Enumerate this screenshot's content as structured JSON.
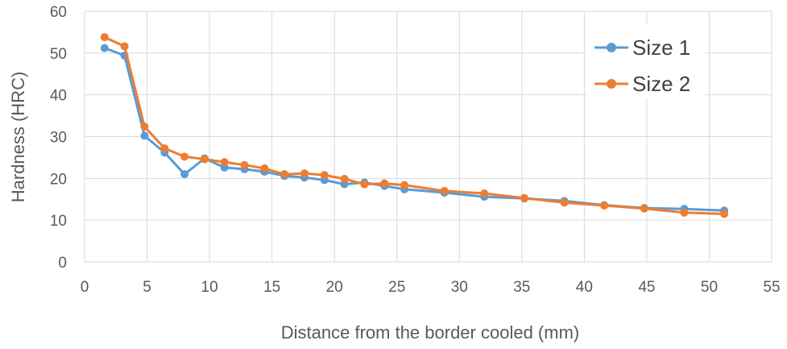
{
  "chart_data": {
    "type": "line",
    "title": "",
    "xlabel": "Distance from the border cooled (mm)",
    "ylabel": "Hardness (HRC)",
    "xlim": [
      0,
      55
    ],
    "ylim": [
      0,
      60
    ],
    "xticks": [
      0,
      5,
      10,
      15,
      20,
      25,
      30,
      35,
      40,
      45,
      50,
      55
    ],
    "yticks": [
      0,
      10,
      20,
      30,
      40,
      50,
      60
    ],
    "grid": true,
    "legend_position": "top-right",
    "series": [
      {
        "name": "Size 1",
        "color": "#5b9bd5",
        "x": [
          1.6,
          3.2,
          4.8,
          6.4,
          8.0,
          9.6,
          11.2,
          12.8,
          14.4,
          16.0,
          17.6,
          19.2,
          20.8,
          22.4,
          24.0,
          25.6,
          28.8,
          32.0,
          35.2,
          38.4,
          41.6,
          44.8,
          48.0,
          51.2
        ],
        "y": [
          51.2,
          49.4,
          30.2,
          26.2,
          21.0,
          24.8,
          22.6,
          22.2,
          21.6,
          20.6,
          20.2,
          19.6,
          18.6,
          19.0,
          18.2,
          17.4,
          16.6,
          15.6,
          15.2,
          14.6,
          13.6,
          12.9,
          12.7,
          12.3
        ]
      },
      {
        "name": "Size 2",
        "color": "#ed7d31",
        "x": [
          1.6,
          3.2,
          4.8,
          6.4,
          8.0,
          9.6,
          11.2,
          12.8,
          14.4,
          16.0,
          17.6,
          19.2,
          20.8,
          22.4,
          24.0,
          25.6,
          28.8,
          32.0,
          35.2,
          38.4,
          41.6,
          44.8,
          48.0,
          51.2
        ],
        "y": [
          53.8,
          51.6,
          32.4,
          27.2,
          25.2,
          24.6,
          23.9,
          23.2,
          22.4,
          21.0,
          21.2,
          20.8,
          19.9,
          18.6,
          18.8,
          18.4,
          17.0,
          16.4,
          15.3,
          14.2,
          13.5,
          12.8,
          11.8,
          11.5
        ]
      }
    ]
  }
}
